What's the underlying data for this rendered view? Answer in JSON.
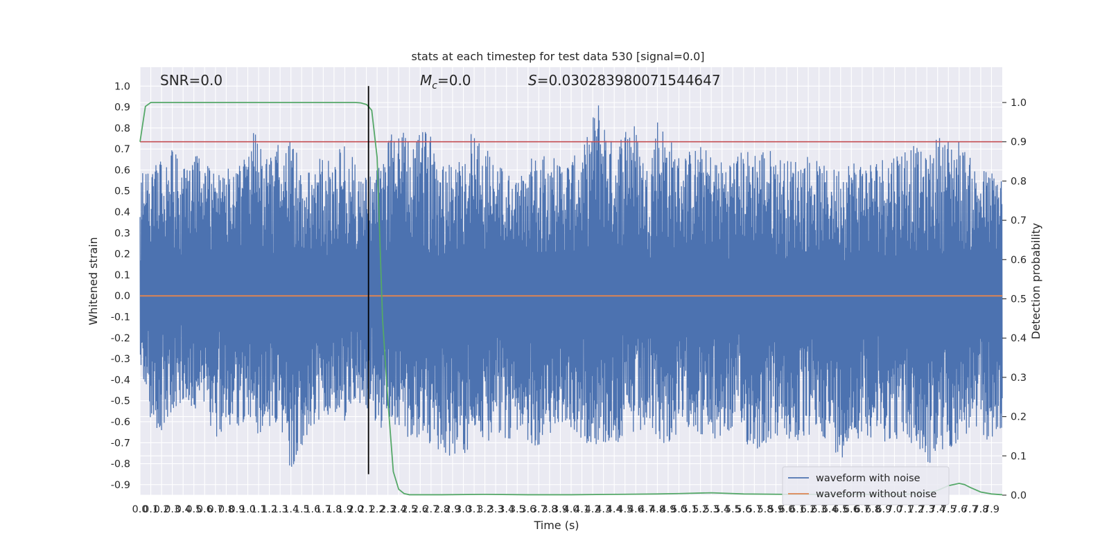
{
  "chart_data": {
    "type": "line",
    "title": "stats at each timestep for test data 530 [signal=0.0]",
    "xlabel": "Time (s)",
    "ylabel_left": "Whitened strain",
    "ylabel_right": "Detection probability",
    "xlim": [
      0.0,
      8.0
    ],
    "ylim_left": [
      -0.95,
      1.09
    ],
    "ylim_right": [
      -0.0,
      1.09
    ],
    "x_ticks": [
      "0.0",
      "0.1",
      "0.2",
      "0.3",
      "0.4",
      "0.5",
      "0.6",
      "0.7",
      "0.8",
      "0.9",
      "1.0",
      "1.1",
      "1.2",
      "1.3",
      "1.4",
      "1.5",
      "1.6",
      "1.7",
      "1.8",
      "1.9",
      "2.0",
      "2.1",
      "2.2",
      "2.3",
      "2.4",
      "2.5",
      "2.6",
      "2.7",
      "2.8",
      "2.9",
      "3.0",
      "3.1",
      "3.2",
      "3.3",
      "3.4",
      "3.5",
      "3.6",
      "3.7",
      "3.8",
      "3.9",
      "4.0",
      "4.1",
      "4.2",
      "4.3",
      "4.4",
      "4.5",
      "4.6",
      "4.7",
      "4.8",
      "4.9",
      "5.0",
      "5.1",
      "5.2",
      "5.3",
      "5.4",
      "5.5",
      "5.6",
      "5.7",
      "5.8",
      "5.9",
      "6.0",
      "6.1",
      "6.2",
      "6.3",
      "6.4",
      "6.5",
      "6.6",
      "6.7",
      "6.8",
      "6.9",
      "7.0",
      "7.1",
      "7.2",
      "7.3",
      "7.4",
      "7.5",
      "7.6",
      "7.7",
      "7.8",
      "7.9"
    ],
    "y_ticks_left": [
      "1.0",
      "0.9",
      "0.8",
      "0.7",
      "0.6",
      "0.5",
      "0.4",
      "0.3",
      "0.2",
      "0.1",
      "0.0",
      "-0.1",
      "-0.2",
      "-0.3",
      "-0.4",
      "-0.5",
      "-0.6",
      "-0.7",
      "-0.8",
      "-0.9"
    ],
    "y_tick_values_left": [
      1.0,
      0.9,
      0.8,
      0.7,
      0.6,
      0.5,
      0.4,
      0.3,
      0.2,
      0.1,
      0.0,
      -0.1,
      -0.2,
      -0.3,
      -0.4,
      -0.5,
      -0.6,
      -0.7,
      -0.8,
      -0.9
    ],
    "y_ticks_right": [
      "1.0",
      "0.9",
      "0.8",
      "0.7",
      "0.6",
      "0.5",
      "0.4",
      "0.3",
      "0.2",
      "0.1",
      "0.0"
    ],
    "y_tick_values_right": [
      1.0,
      0.9,
      0.8,
      0.7,
      0.6,
      0.5,
      0.4,
      0.3,
      0.2,
      0.1,
      0.0
    ],
    "annotations": {
      "snr": "SNR=0.0",
      "mc_symbol": "M",
      "mc_sub": "c",
      "mc_value": "=0.0",
      "s_symbol": "S",
      "s_value": "=0.030283980071544647"
    },
    "series": [
      {
        "name": "waveform with noise",
        "color": "#4c72b0",
        "axis": "left",
        "envelope_upper": [
          [
            0.0,
            0.58
          ],
          [
            0.1,
            0.6
          ],
          [
            0.2,
            0.65
          ],
          [
            0.3,
            0.72
          ],
          [
            0.4,
            0.62
          ],
          [
            0.5,
            0.68
          ],
          [
            0.6,
            0.65
          ],
          [
            0.7,
            0.58
          ],
          [
            0.8,
            0.62
          ],
          [
            0.9,
            0.6
          ],
          [
            1.05,
            0.81
          ],
          [
            1.2,
            0.65
          ],
          [
            1.3,
            0.75
          ],
          [
            1.4,
            0.79
          ],
          [
            1.5,
            0.6
          ],
          [
            1.6,
            0.62
          ],
          [
            1.7,
            0.68
          ],
          [
            1.8,
            0.63
          ],
          [
            1.9,
            0.77
          ],
          [
            2.0,
            0.62
          ],
          [
            2.1,
            0.58
          ],
          [
            2.25,
            0.62
          ],
          [
            2.35,
            0.88
          ],
          [
            2.5,
            0.72
          ],
          [
            2.65,
            0.8
          ],
          [
            2.8,
            0.7
          ],
          [
            2.95,
            0.65
          ],
          [
            3.1,
            0.82
          ],
          [
            3.3,
            0.65
          ],
          [
            3.5,
            0.55
          ],
          [
            3.7,
            0.72
          ],
          [
            3.9,
            0.65
          ],
          [
            4.1,
            0.68
          ],
          [
            4.25,
            0.95
          ],
          [
            4.4,
            0.7
          ],
          [
            4.55,
            0.9
          ],
          [
            4.7,
            0.62
          ],
          [
            4.8,
            0.87
          ],
          [
            5.0,
            0.68
          ],
          [
            5.2,
            0.72
          ],
          [
            5.4,
            0.65
          ],
          [
            5.6,
            0.7
          ],
          [
            5.8,
            0.72
          ],
          [
            6.0,
            0.65
          ],
          [
            6.2,
            0.68
          ],
          [
            6.4,
            0.6
          ],
          [
            6.6,
            0.66
          ],
          [
            6.8,
            0.65
          ],
          [
            7.0,
            0.7
          ],
          [
            7.15,
            0.74
          ],
          [
            7.3,
            0.66
          ],
          [
            7.4,
            0.77
          ],
          [
            7.6,
            0.75
          ],
          [
            7.75,
            0.62
          ],
          [
            7.9,
            0.6
          ],
          [
            8.0,
            0.6
          ]
        ],
        "envelope_lower": [
          [
            0.0,
            -0.35
          ],
          [
            0.1,
            -0.6
          ],
          [
            0.2,
            -0.68
          ],
          [
            0.3,
            -0.55
          ],
          [
            0.4,
            -0.5
          ],
          [
            0.5,
            -0.55
          ],
          [
            0.6,
            -0.52
          ],
          [
            0.7,
            -0.72
          ],
          [
            0.8,
            -0.6
          ],
          [
            0.9,
            -0.65
          ],
          [
            1.0,
            -0.58
          ],
          [
            1.1,
            -0.68
          ],
          [
            1.2,
            -0.62
          ],
          [
            1.3,
            -0.65
          ],
          [
            1.4,
            -0.84
          ],
          [
            1.5,
            -0.72
          ],
          [
            1.6,
            -0.62
          ],
          [
            1.7,
            -0.58
          ],
          [
            1.8,
            -0.55
          ],
          [
            1.9,
            -0.6
          ],
          [
            2.0,
            -0.5
          ],
          [
            2.1,
            -0.55
          ],
          [
            2.25,
            -0.65
          ],
          [
            2.4,
            -0.62
          ],
          [
            2.5,
            -0.7
          ],
          [
            2.7,
            -0.72
          ],
          [
            2.8,
            -0.75
          ],
          [
            2.95,
            -0.78
          ],
          [
            3.1,
            -0.72
          ],
          [
            3.3,
            -0.7
          ],
          [
            3.5,
            -0.68
          ],
          [
            3.7,
            -0.72
          ],
          [
            3.9,
            -0.62
          ],
          [
            4.1,
            -0.7
          ],
          [
            4.3,
            -0.72
          ],
          [
            4.5,
            -0.7
          ],
          [
            4.7,
            -0.66
          ],
          [
            4.9,
            -0.72
          ],
          [
            5.1,
            -0.62
          ],
          [
            5.3,
            -0.72
          ],
          [
            5.5,
            -0.65
          ],
          [
            5.7,
            -0.75
          ],
          [
            5.9,
            -0.68
          ],
          [
            6.1,
            -0.72
          ],
          [
            6.3,
            -0.65
          ],
          [
            6.5,
            -0.78
          ],
          [
            6.7,
            -0.66
          ],
          [
            6.9,
            -0.7
          ],
          [
            7.1,
            -0.68
          ],
          [
            7.3,
            -0.82
          ],
          [
            7.5,
            -0.74
          ],
          [
            7.7,
            -0.66
          ],
          [
            7.9,
            -0.7
          ],
          [
            8.0,
            -0.68
          ]
        ]
      },
      {
        "name": "waveform without noise",
        "color": "#dd8452",
        "axis": "left",
        "x": [
          0.0,
          8.0
        ],
        "y": [
          0.0,
          0.0
        ]
      },
      {
        "name": "detection probability",
        "color": "#55a868",
        "axis": "right",
        "x": [
          0.0,
          0.05,
          0.1,
          0.2,
          0.4,
          0.8,
          1.2,
          1.6,
          2.0,
          2.05,
          2.1,
          2.12,
          2.15,
          2.2,
          2.25,
          2.3,
          2.35,
          2.4,
          2.45,
          2.5,
          2.6,
          2.8,
          3.2,
          3.6,
          4.0,
          4.4,
          4.8,
          5.0,
          5.3,
          5.6,
          6.0,
          6.4,
          6.8,
          7.0,
          7.2,
          7.3,
          7.4,
          7.5,
          7.6,
          7.65,
          7.7,
          7.8,
          7.9,
          8.0
        ],
        "y": [
          0.9,
          0.99,
          1.0,
          1.0,
          1.0,
          1.0,
          1.0,
          1.0,
          1.0,
          0.999,
          0.995,
          0.99,
          0.98,
          0.86,
          0.45,
          0.24,
          0.06,
          0.015,
          0.004,
          0.001,
          0.001,
          0.001,
          0.002,
          0.001,
          0.001,
          0.002,
          0.003,
          0.004,
          0.006,
          0.003,
          0.002,
          0.002,
          0.002,
          0.002,
          0.003,
          0.006,
          0.012,
          0.024,
          0.03,
          0.027,
          0.02,
          0.008,
          0.003,
          0.001
        ]
      }
    ],
    "threshold": {
      "axis": "right",
      "value": 0.9,
      "color": "#c44e52"
    },
    "marker_line": {
      "x": 2.12,
      "y_range_left": [
        -0.85,
        1.0
      ],
      "color": "#000000"
    },
    "legend": {
      "location": "lower right",
      "entries": [
        {
          "label": "waveform with noise",
          "color": "#4c72b0"
        },
        {
          "label": "waveform without noise",
          "color": "#dd8452"
        }
      ]
    },
    "grid": true,
    "style": {
      "background": "#eaeaf2",
      "grid_color": "#ffffff"
    }
  }
}
